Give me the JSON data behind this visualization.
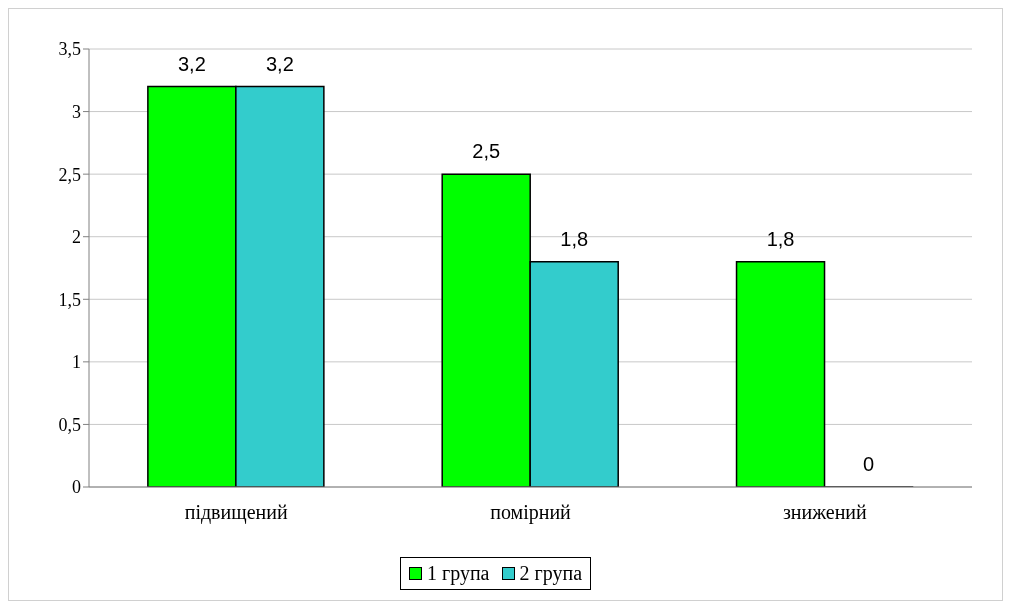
{
  "chart_data": {
    "type": "bar",
    "categories": [
      "підвищений",
      "помірний",
      "знижений"
    ],
    "series": [
      {
        "name": "1 група",
        "color": "#00ff00",
        "values": [
          3.2,
          2.5,
          1.8
        ],
        "value_labels": [
          "3,2",
          "2,5",
          "1,8"
        ]
      },
      {
        "name": "2 група",
        "color": "#33cccc",
        "values": [
          3.2,
          1.8,
          0
        ],
        "value_labels": [
          "3,2",
          "1,8",
          "0"
        ]
      }
    ],
    "ylim": [
      0,
      3.5
    ],
    "yticks": [
      {
        "value": 0,
        "label": "0"
      },
      {
        "value": 0.5,
        "label": "0,5"
      },
      {
        "value": 1,
        "label": "1"
      },
      {
        "value": 1.5,
        "label": "1,5"
      },
      {
        "value": 2,
        "label": "2"
      },
      {
        "value": 2.5,
        "label": "2,5"
      },
      {
        "value": 3,
        "label": "3"
      },
      {
        "value": 3.5,
        "label": "3,5"
      }
    ],
    "grid": "y",
    "legend": "bottom"
  }
}
